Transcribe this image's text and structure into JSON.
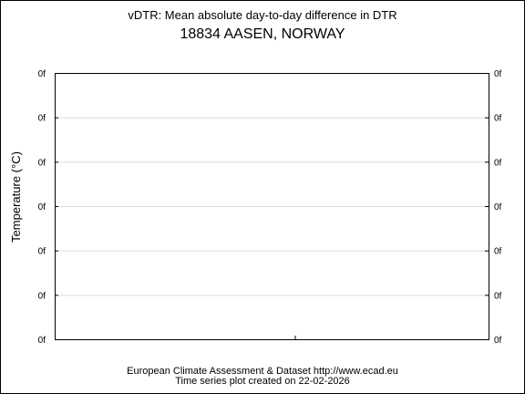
{
  "chart_data": {
    "type": "line",
    "title": "vDTR: Mean absolute day-to-day difference in DTR",
    "subtitle": "18834 AASEN, NORWAY",
    "ylabel": "Temperature (°C)",
    "xlabel": "",
    "y_ticks": [
      "0f",
      "0f",
      "0f",
      "0f",
      "0f",
      "0f",
      "0f"
    ],
    "x_ticks": [],
    "grid": true,
    "series": []
  },
  "footer": {
    "line1": "European Climate Assessment & Dataset  http://www.ecad.eu",
    "line2": "Time series plot created on 22-02-2026"
  }
}
